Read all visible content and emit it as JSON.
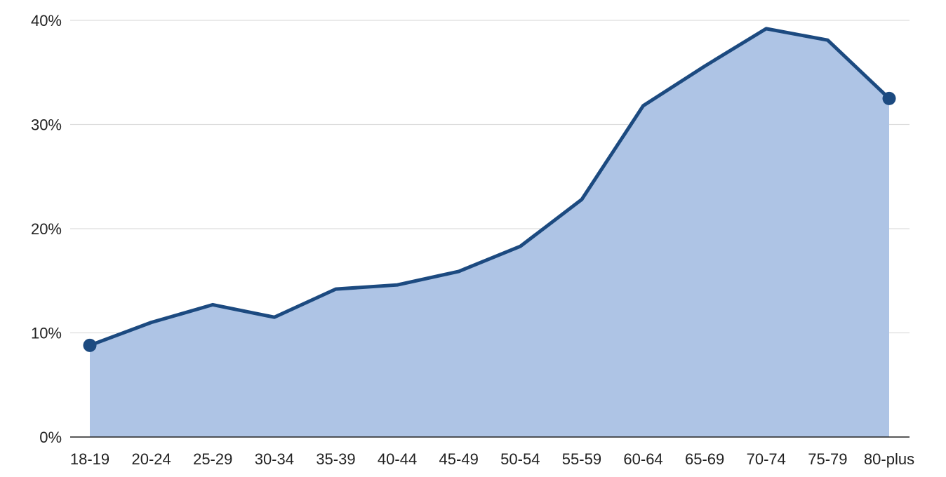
{
  "chart_data": {
    "type": "area",
    "title": "",
    "xlabel": "",
    "ylabel": "",
    "categories": [
      "18-19",
      "20-24",
      "25-29",
      "30-34",
      "35-39",
      "40-44",
      "45-49",
      "50-54",
      "55-59",
      "60-64",
      "65-69",
      "70-74",
      "75-79",
      "80-plus"
    ],
    "values": [
      8.8,
      11.0,
      12.7,
      11.5,
      14.2,
      14.6,
      15.9,
      18.3,
      22.8,
      31.8,
      35.6,
      39.2,
      38.1,
      32.5
    ],
    "ylim": [
      0,
      40
    ],
    "yticks": [
      0,
      10,
      20,
      30,
      40
    ],
    "ytick_labels": [
      "0%",
      "10%",
      "20%",
      "30%",
      "40%"
    ],
    "grid": "horizontal",
    "endpoint_markers": true,
    "colors": {
      "line": "#1c4a80",
      "fill": "#aec4e5",
      "grid": "#dddddd",
      "axis": "#222222",
      "text": "#222222"
    }
  }
}
